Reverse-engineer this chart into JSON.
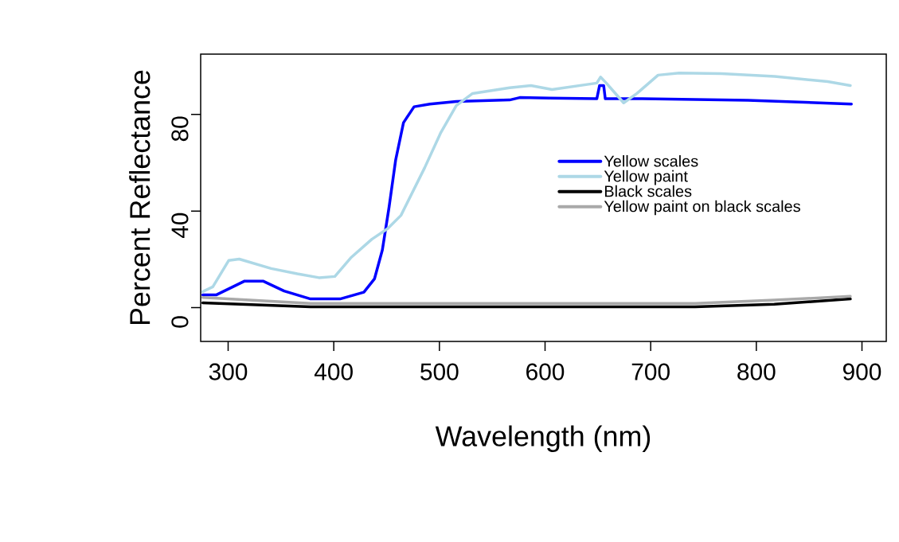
{
  "chart_data": {
    "type": "line",
    "xlabel": "Wavelength (nm)",
    "ylabel": "Percent Reflectance",
    "xlim": [
      274,
      923
    ],
    "ylim": [
      -14,
      105
    ],
    "xticks": [
      300,
      400,
      500,
      600,
      700,
      800,
      900
    ],
    "yticks": [
      0,
      40,
      80
    ],
    "legend": "right",
    "line_style": "solid",
    "marker": "none",
    "grid": false,
    "series": [
      {
        "name": "Yellow scales",
        "color": "#0000ff",
        "x": [
          276,
          289,
          315.6,
          333,
          353,
          378,
          406,
          428.5,
          438.5,
          446,
          452.3,
          458.6,
          466,
          476,
          491,
          516,
          566.5,
          576,
          604,
          649,
          651.6,
          655.5,
          657,
          692,
          792,
          890
        ],
        "values": [
          5.3,
          5.3,
          11.0,
          11.0,
          6.9,
          3.6,
          3.6,
          6.4,
          11.9,
          23.9,
          41.5,
          61.2,
          76.6,
          83.2,
          84.3,
          85.4,
          86,
          87,
          86.8,
          86.5,
          92,
          92,
          86.5,
          86.5,
          85.9,
          84.3
        ]
      },
      {
        "name": "Yellow paint",
        "color": "#add8e6",
        "x": [
          276,
          285.5,
          300.5,
          310.5,
          340.7,
          365.5,
          386,
          401,
          416,
          436,
          451,
          463.6,
          486,
          501,
          516,
          531.4,
          566.5,
          586.6,
          606.6,
          649,
          652.5,
          658,
          674.4,
          687,
          707,
          727,
          767,
          817.4,
          867.6,
          889
        ],
        "values": [
          6.6,
          8.6,
          19.5,
          20.1,
          16.2,
          14.0,
          12.4,
          12.9,
          20.6,
          28.3,
          32.7,
          38.2,
          57.9,
          72.2,
          83.7,
          88.7,
          91.1,
          92,
          90.3,
          93,
          95.5,
          93,
          84.8,
          88.7,
          96.3,
          97.2,
          96.9,
          95.8,
          93.6,
          92
        ]
      },
      {
        "name": "Black scales",
        "color": "#000000",
        "x": [
          276,
          378,
          742,
          817,
          889
        ],
        "values": [
          2.0,
          0.3,
          0.3,
          1.4,
          3.6
        ]
      },
      {
        "name": "Yellow paint on black scales",
        "color": "#a9a9a9",
        "x": [
          276,
          378,
          742,
          817,
          889
        ],
        "values": [
          4.2,
          1.7,
          1.7,
          3.1,
          4.7
        ]
      }
    ]
  }
}
